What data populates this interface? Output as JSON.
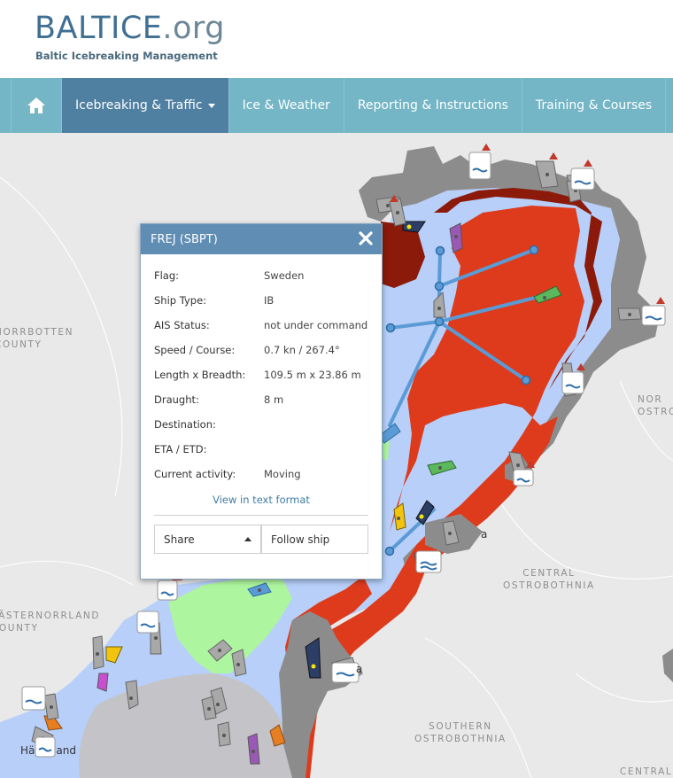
{
  "header": {
    "logo_main": "BALTICE",
    "logo_tld": ".org",
    "tagline": "Baltic Icebreaking Management"
  },
  "nav": {
    "home_icon": "home-icon",
    "items": [
      {
        "label": "Icebreaking & Traffic",
        "active": true,
        "dropdown": true
      },
      {
        "label": "Ice & Weather"
      },
      {
        "label": "Reporting & Instructions"
      },
      {
        "label": "Training & Courses"
      }
    ]
  },
  "map": {
    "labels": {
      "norrbotten": "NORRBOTTEN\nCOUNTY",
      "north_ostro": "NOR\nOSTRO",
      "central_ostro": "CENTRAL\nOSTROBOTHNIA",
      "vasternorrland": "VÄSTERNORRLAND\nCOUNTY",
      "southern_ostro": "SOUTHERN\nOSTROBOTHNIA",
      "central_partial": "CENTRAL",
      "town_a1": "a",
      "town_a2": "a",
      "harnosand": "Hä  and"
    },
    "colors": {
      "water": "#b7cff9",
      "land": "#e9e9ea",
      "fast_ice": "#888888",
      "very_close_ice": "#de3b1c",
      "compact_ice": "#8b1a0a",
      "open_ice": "#adf59f",
      "route": "#5b9bd5"
    }
  },
  "popup": {
    "title": "FREJ (SBPT)",
    "fields": [
      {
        "key": "Flag:",
        "value": "Sweden"
      },
      {
        "key": "Ship Type:",
        "value": "IB"
      },
      {
        "key": "AIS Status:",
        "value": "not under command"
      },
      {
        "key": "Speed / Course:",
        "value": "0.7 kn / 267.4°"
      },
      {
        "key": "Length x Breadth:",
        "value": "109.5 m x 23.86 m"
      },
      {
        "key": "Draught:",
        "value": "8 m"
      },
      {
        "key": "Destination:",
        "value": ""
      },
      {
        "key": "ETA / ETD:",
        "value": ""
      },
      {
        "key": "Current activity:",
        "value": "Moving"
      }
    ],
    "text_format_link": "View in text format",
    "share_label": "Share",
    "follow_label": "Follow ship"
  }
}
